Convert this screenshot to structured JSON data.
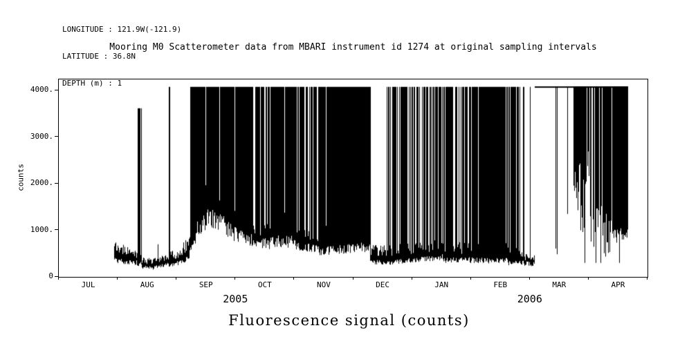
{
  "header_info": {
    "lines": [
      "LONGITUDE : 121.9W(-121.9)",
      "LATITUDE : 36.8N",
      "DEPTH (m) : 1"
    ]
  },
  "chart_data": {
    "type": "line",
    "title": "Mooring M0 Scatterometer data from MBARI instrument id 1274 at original sampling intervals",
    "caption": "Fluorescence signal (counts)",
    "ylabel": "counts",
    "ylim": [
      0,
      4240
    ],
    "grid": false,
    "saturation_level": 4080,
    "y_ticks": [
      {
        "value": 0,
        "label": "0"
      },
      {
        "value": 1000,
        "label": "1000."
      },
      {
        "value": 2000,
        "label": "2000."
      },
      {
        "value": 3000,
        "label": "3000."
      },
      {
        "value": 4000,
        "label": "4000."
      }
    ],
    "x_range_months": [
      0,
      10
    ],
    "x_months": [
      "JUL",
      "AUG",
      "SEP",
      "OCT",
      "NOV",
      "DEC",
      "JAN",
      "FEB",
      "MAR",
      "APR"
    ],
    "year_labels": [
      {
        "label": "2005",
        "center_month": 3.0
      },
      {
        "label": "2006",
        "center_month": 8.0
      }
    ],
    "series_encoding": "Noisy high-rate fluorescence signal approximated as envelope segments; t in months since 1 JUL 2005; counts clip near 4080; modes: band=low noisy baseline, mix=baseline with spikes to clip level (probability p), solid=saturated black fill from lower envelope to clip, top=signal pegged at clip with hanging drops",
    "segments": [
      {
        "t0": 0.93,
        "t1": 1.33,
        "mode": "band",
        "lo0": 360,
        "lo1": 300,
        "hi0": 800,
        "hi1": 560,
        "top": 950,
        "p": 0.05
      },
      {
        "t0": 1.33,
        "t1": 1.41,
        "mode": "mix",
        "lo0": 280,
        "lo1": 280,
        "hi0": 520,
        "hi1": 480,
        "top": 3620,
        "p": 0.5
      },
      {
        "t0": 1.41,
        "t1": 1.6,
        "mode": "band",
        "lo0": 210,
        "lo1": 190,
        "hi0": 430,
        "hi1": 400,
        "top": 600,
        "p": 0.02
      },
      {
        "t0": 1.6,
        "t1": 1.86,
        "mode": "band",
        "lo0": 200,
        "lo1": 260,
        "hi0": 420,
        "hi1": 540,
        "top": 700,
        "p": 0.02
      },
      {
        "t0": 1.86,
        "t1": 1.885,
        "mode": "mix",
        "lo0": 250,
        "lo1": 250,
        "hi0": 500,
        "hi1": 500,
        "top": 4080,
        "p": 1
      },
      {
        "t0": 1.885,
        "t1": 2.05,
        "mode": "band",
        "lo0": 260,
        "lo1": 300,
        "hi0": 540,
        "hi1": 620,
        "top": 800,
        "p": 0.03
      },
      {
        "t0": 2.05,
        "t1": 2.2,
        "mode": "mix",
        "lo0": 300,
        "lo1": 420,
        "hi0": 640,
        "hi1": 900,
        "top": 4080,
        "p": 0.15
      },
      {
        "t0": 2.2,
        "t1": 2.34,
        "mode": "mix",
        "lo0": 420,
        "lo1": 950,
        "hi0": 900,
        "hi1": 1700,
        "top": 4080,
        "p": 0.6
      },
      {
        "t0": 2.34,
        "t1": 2.56,
        "mode": "solid",
        "lo0": 1000,
        "lo1": 1300,
        "hi0": 1600,
        "hi1": 1900,
        "top": 4080,
        "p": 0.97
      },
      {
        "t0": 2.56,
        "t1": 2.95,
        "mode": "solid",
        "lo0": 1300,
        "lo1": 980,
        "hi0": 1900,
        "hi1": 1500,
        "top": 4080,
        "p": 0.96
      },
      {
        "t0": 2.95,
        "t1": 3.3,
        "mode": "solid",
        "lo0": 950,
        "lo1": 780,
        "hi0": 1500,
        "hi1": 1300,
        "top": 4080,
        "p": 0.9
      },
      {
        "t0": 3.3,
        "t1": 3.62,
        "mode": "mix",
        "lo0": 720,
        "lo1": 720,
        "hi0": 1250,
        "hi1": 1250,
        "top": 4080,
        "p": 0.8
      },
      {
        "t0": 3.62,
        "t1": 4.02,
        "mode": "solid",
        "lo0": 760,
        "lo1": 760,
        "hi0": 1300,
        "hi1": 1300,
        "top": 4080,
        "p": 0.93
      },
      {
        "t0": 4.02,
        "t1": 4.4,
        "mode": "mix",
        "lo0": 620,
        "lo1": 600,
        "hi0": 1100,
        "hi1": 1050,
        "top": 4080,
        "p": 0.8
      },
      {
        "t0": 4.4,
        "t1": 5.28,
        "mode": "solid",
        "lo0": 560,
        "lo1": 640,
        "hi0": 1000,
        "hi1": 1100,
        "top": 4080,
        "p": 0.95
      },
      {
        "t0": 5.28,
        "t1": 5.56,
        "mode": "band",
        "lo0": 300,
        "lo1": 320,
        "hi0": 680,
        "hi1": 700,
        "top": 4080,
        "p": 0.08
      },
      {
        "t0": 5.56,
        "t1": 6.52,
        "mode": "mix",
        "lo0": 300,
        "lo1": 440,
        "hi0": 700,
        "hi1": 820,
        "top": 4080,
        "p": 0.7
      },
      {
        "t0": 6.52,
        "t1": 7.02,
        "mode": "mix",
        "lo0": 360,
        "lo1": 360,
        "hi0": 760,
        "hi1": 740,
        "top": 4080,
        "p": 0.75
      },
      {
        "t0": 7.02,
        "t1": 7.62,
        "mode": "solid",
        "lo0": 350,
        "lo1": 350,
        "hi0": 700,
        "hi1": 700,
        "top": 4080,
        "p": 0.88
      },
      {
        "t0": 7.62,
        "t1": 7.9,
        "mode": "mix",
        "lo0": 300,
        "lo1": 300,
        "hi0": 640,
        "hi1": 620,
        "top": 4080,
        "p": 0.78
      },
      {
        "t0": 7.9,
        "t1": 8.08,
        "mode": "band",
        "lo0": 280,
        "lo1": 280,
        "hi0": 500,
        "hi1": 480,
        "top": 4080,
        "p": 0.05
      },
      {
        "t0": 8.08,
        "t1": 8.74,
        "mode": "top",
        "top": 4090,
        "p": 0.05,
        "hmin": 350,
        "hmax": 1600
      },
      {
        "t0": 8.74,
        "t1": 9.02,
        "mode": "top",
        "top": 4090,
        "p": 0.85,
        "hmin": 900,
        "hmax": 2900
      },
      {
        "t0": 9.02,
        "t1": 9.38,
        "mode": "top",
        "top": 4090,
        "p": 0.9,
        "hmin": 420,
        "hmax": 1600
      },
      {
        "t0": 9.38,
        "t1": 9.66,
        "mode": "top",
        "top": 4090,
        "p": 0.96,
        "hmin": 700,
        "hmax": 1050
      }
    ]
  }
}
